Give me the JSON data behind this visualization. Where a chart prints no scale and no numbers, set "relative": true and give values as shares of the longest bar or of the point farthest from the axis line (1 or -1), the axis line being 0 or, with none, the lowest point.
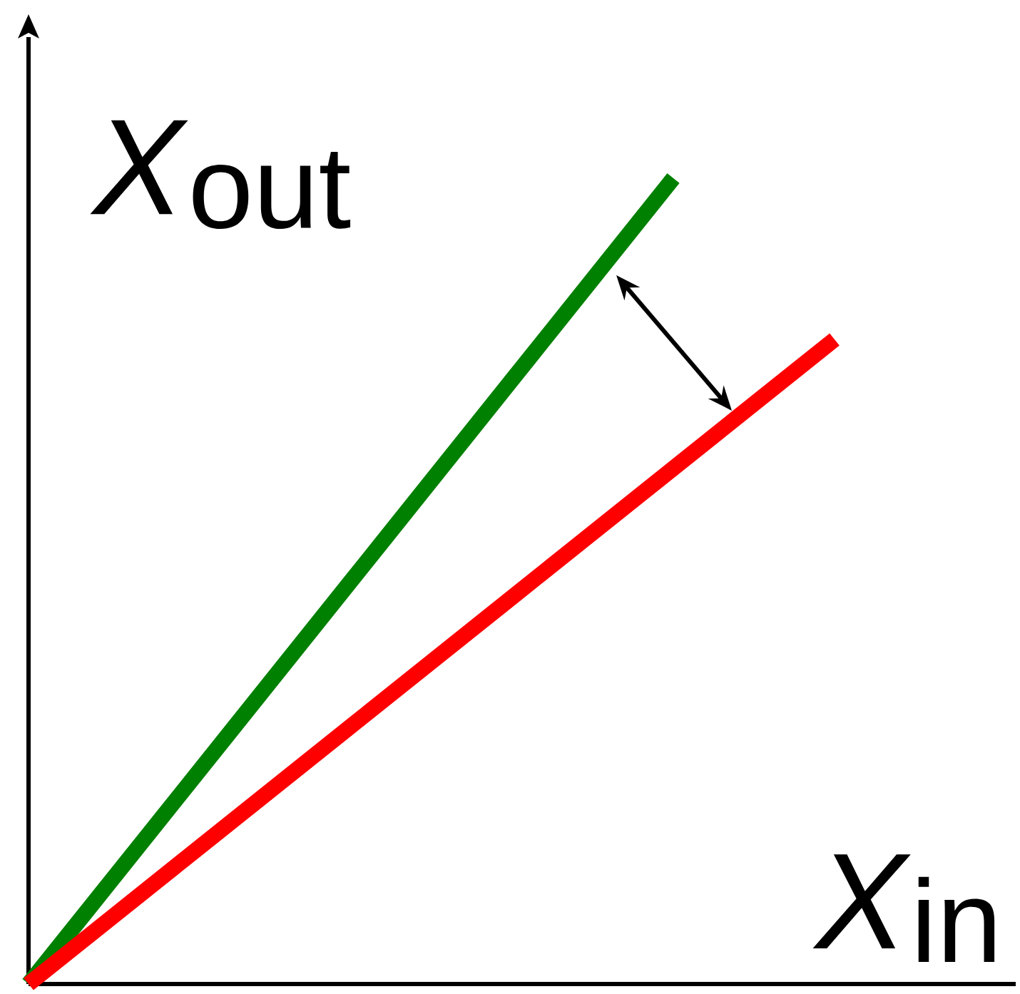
{
  "chart_data": {
    "type": "line",
    "xlabel": "*X*$_{in}$",
    "ylabel": "*X*$_{out}$",
    "categories": [
      null,
      null,
      null,
      null,
      null,
      null
    ],
    "relative": true,
    "line_style": "solid",
    "series": [
      {
        "color": "#008000",
        "values": [
          0,
          0.25,
          0.5,
          0.75,
          1,
          null
        ]
      },
      {
        "color": "#ff0000",
        "values": [
          0,
          0.16,
          0.32,
          0.48,
          0.64,
          0.8
        ]
      }
    ]
  }
}
